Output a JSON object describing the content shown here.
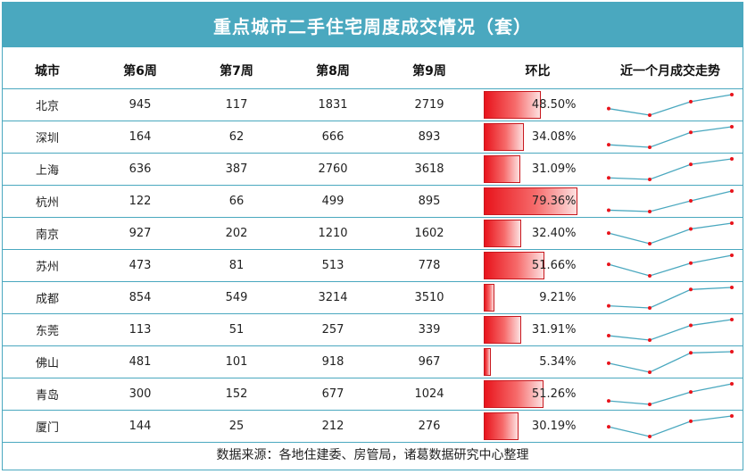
{
  "title": "重点城市二手住宅周度成交情况（套）",
  "footer": "数据来源：各地住建委、房管局，诸葛数据研究中心整理",
  "colors": {
    "header_bg": "#4aa8bf",
    "bar_red": "#e8141c",
    "spark_line": "#4aa8bf",
    "spark_dot": "#e8141c"
  },
  "chart_data": {
    "type": "table",
    "columns": [
      "城市",
      "第6周",
      "第7周",
      "第8周",
      "第9周",
      "环比",
      "近一个月成交走势"
    ],
    "rows": [
      {
        "city": "北京",
        "w6": 945,
        "w7": 117,
        "w8": 1831,
        "w9": 2719,
        "mom": "48.50%",
        "mom_value": 48.5
      },
      {
        "city": "深圳",
        "w6": 164,
        "w7": 62,
        "w8": 666,
        "w9": 893,
        "mom": "34.08%",
        "mom_value": 34.08
      },
      {
        "city": "上海",
        "w6": 636,
        "w7": 387,
        "w8": 2760,
        "w9": 3618,
        "mom": "31.09%",
        "mom_value": 31.09
      },
      {
        "city": "杭州",
        "w6": 122,
        "w7": 66,
        "w8": 499,
        "w9": 895,
        "mom": "79.36%",
        "mom_value": 79.36
      },
      {
        "city": "南京",
        "w6": 927,
        "w7": 202,
        "w8": 1210,
        "w9": 1602,
        "mom": "32.40%",
        "mom_value": 32.4
      },
      {
        "city": "苏州",
        "w6": 473,
        "w7": 81,
        "w8": 513,
        "w9": 778,
        "mom": "51.66%",
        "mom_value": 51.66
      },
      {
        "city": "成都",
        "w6": 854,
        "w7": 549,
        "w8": 3214,
        "w9": 3510,
        "mom": "9.21%",
        "mom_value": 9.21
      },
      {
        "city": "东莞",
        "w6": 113,
        "w7": 51,
        "w8": 257,
        "w9": 339,
        "mom": "31.91%",
        "mom_value": 31.91
      },
      {
        "city": "佛山",
        "w6": 481,
        "w7": 101,
        "w8": 918,
        "w9": 967,
        "mom": "5.34%",
        "mom_value": 5.34
      },
      {
        "city": "青岛",
        "w6": 300,
        "w7": 152,
        "w8": 677,
        "w9": 1024,
        "mom": "51.26%",
        "mom_value": 51.26
      },
      {
        "city": "厦门",
        "w6": 144,
        "w7": 25,
        "w8": 212,
        "w9": 276,
        "mom": "30.19%",
        "mom_value": 30.19
      }
    ]
  }
}
